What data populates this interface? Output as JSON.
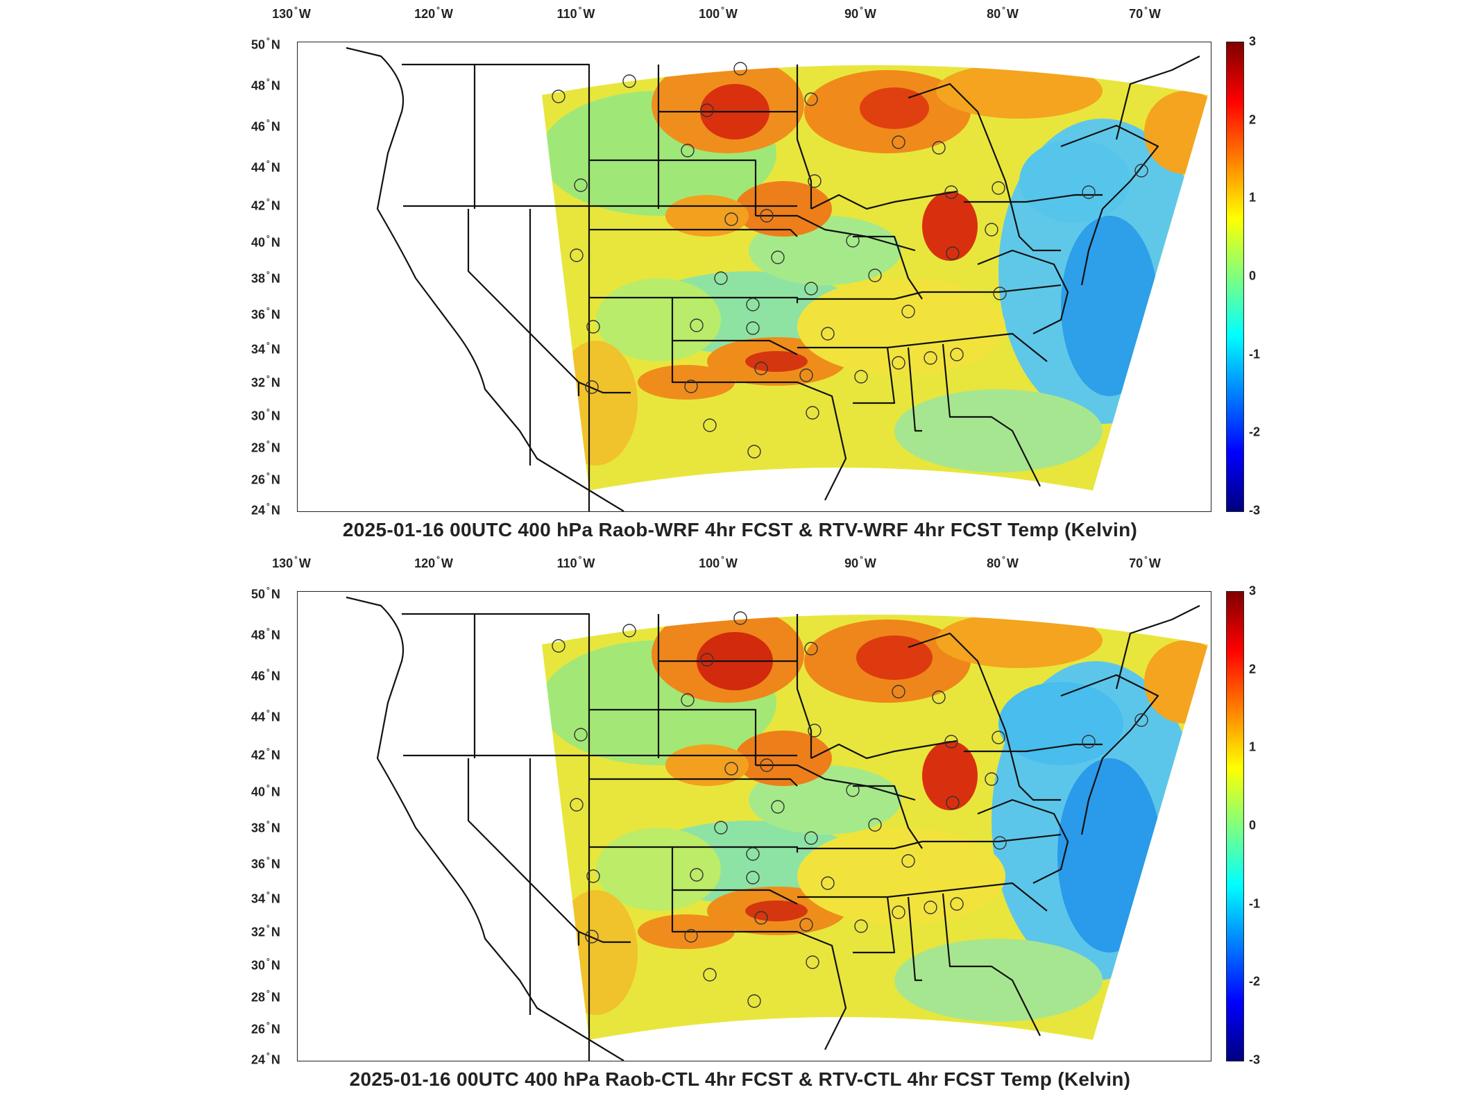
{
  "panels": [
    {
      "title": "2025-01-16 00UTC 400 hPa Raob-WRF 4hr FCST & RTV-WRF 4hr FCST Temp (Kelvin)",
      "lon_labels": [
        "130",
        "120",
        "110",
        "100",
        "90",
        "80",
        "70"
      ],
      "lon_suffix": "W",
      "lat_labels": [
        "50",
        "48",
        "46",
        "44",
        "42",
        "40",
        "38",
        "36",
        "34",
        "32",
        "30",
        "28",
        "26",
        "24"
      ],
      "lat_suffix": "N",
      "colorbar": {
        "ticks": [
          "3",
          "2",
          "1",
          "0",
          "-1",
          "-2",
          "-3"
        ],
        "colormap": "jet",
        "range": [
          -3,
          3
        ]
      }
    },
    {
      "title": "2025-01-16 00UTC 400 hPa Raob-CTL 4hr FCST & RTV-CTL 4hr FCST Temp (Kelvin)",
      "lon_labels": [
        "130",
        "120",
        "110",
        "100",
        "90",
        "80",
        "70"
      ],
      "lon_suffix": "W",
      "lat_labels": [
        "50",
        "48",
        "46",
        "44",
        "42",
        "40",
        "38",
        "36",
        "34",
        "32",
        "30",
        "28",
        "26",
        "24"
      ],
      "lat_suffix": "N",
      "colorbar": {
        "ticks": [
          "3",
          "2",
          "1",
          "0",
          "-1",
          "-2",
          "-3"
        ],
        "colormap": "jet",
        "range": [
          -3,
          3
        ]
      }
    }
  ],
  "colors": {
    "hot": "#e23a14",
    "warm": "#f6a21c",
    "mid": "#e9e83a",
    "cool": "#7fe08a",
    "cold": "#2aa7f0",
    "border": "#111111"
  }
}
